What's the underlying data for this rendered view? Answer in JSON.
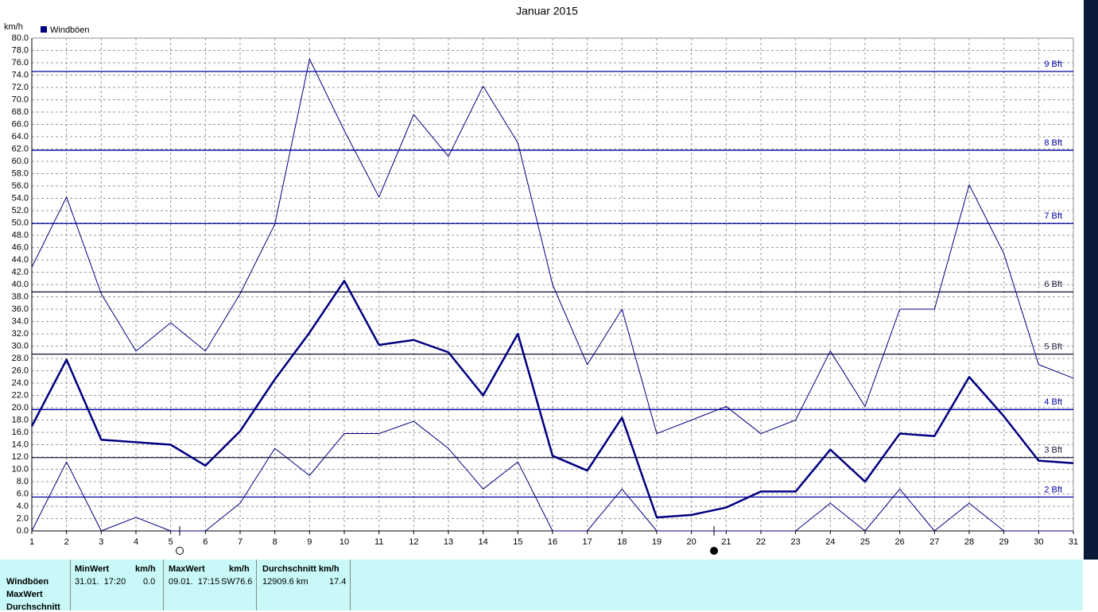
{
  "chart_data": {
    "type": "line",
    "title": "Januar 2015",
    "y_unit": "km/h",
    "legend": {
      "label": "Windböen",
      "color": "#000080"
    },
    "x": [
      1,
      2,
      3,
      4,
      5,
      6,
      7,
      8,
      9,
      10,
      11,
      12,
      13,
      14,
      15,
      16,
      17,
      18,
      19,
      20,
      21,
      22,
      23,
      24,
      25,
      26,
      27,
      28,
      29,
      30,
      31
    ],
    "xlim": [
      1,
      31
    ],
    "xticks": [
      1,
      2,
      3,
      4,
      5,
      6,
      7,
      8,
      9,
      10,
      11,
      12,
      13,
      14,
      15,
      16,
      17,
      18,
      19,
      20,
      21,
      22,
      23,
      24,
      25,
      26,
      27,
      28,
      29,
      30,
      31
    ],
    "ylim": [
      0,
      80
    ],
    "yticks": [
      {
        "value": 0,
        "label": "0.0"
      },
      {
        "value": 2,
        "label": "2.0"
      },
      {
        "value": 4,
        "label": "4.0"
      },
      {
        "value": 6,
        "label": "6.0"
      },
      {
        "value": 8,
        "label": "8.0"
      },
      {
        "value": 10,
        "label": "10.0"
      },
      {
        "value": 12,
        "label": "12.0"
      },
      {
        "value": 14,
        "label": "14.0"
      },
      {
        "value": 16,
        "label": "16.0"
      },
      {
        "value": 18,
        "label": "18.0"
      },
      {
        "value": 20,
        "label": "20.0"
      },
      {
        "value": 22,
        "label": "22.0"
      },
      {
        "value": 24,
        "label": "24.0"
      },
      {
        "value": 26,
        "label": "26.0"
      },
      {
        "value": 28,
        "label": "28.0"
      },
      {
        "value": 30,
        "label": "30.0"
      },
      {
        "value": 32,
        "label": "32.0"
      },
      {
        "value": 34,
        "label": "34.0"
      },
      {
        "value": 36,
        "label": "36.0"
      },
      {
        "value": 38,
        "label": "38.0"
      },
      {
        "value": 40,
        "label": "40.0"
      },
      {
        "value": 42,
        "label": "42.0"
      },
      {
        "value": 44,
        "label": "44.0"
      },
      {
        "value": 46,
        "label": "46.0"
      },
      {
        "value": 48,
        "label": "48.0"
      },
      {
        "value": 50,
        "label": "50.0"
      },
      {
        "value": 52,
        "label": "52.0"
      },
      {
        "value": 54,
        "label": "54.0"
      },
      {
        "value": 56,
        "label": "56.0"
      },
      {
        "value": 58,
        "label": "58.0"
      },
      {
        "value": 60,
        "label": "60.0"
      },
      {
        "value": 62,
        "label": "62.0"
      },
      {
        "value": 64,
        "label": "64.0"
      },
      {
        "value": 66,
        "label": "66.0"
      },
      {
        "value": 68,
        "label": "68.0"
      },
      {
        "value": 70,
        "label": "70.0"
      },
      {
        "value": 72,
        "label": "72.0"
      },
      {
        "value": 74,
        "label": "74.0"
      },
      {
        "value": 76,
        "label": "76.0"
      },
      {
        "value": 78,
        "label": "78.0"
      },
      {
        "value": 80,
        "label": "80.0"
      }
    ],
    "grid": true,
    "series": [
      {
        "color": "#000080",
        "width": 1,
        "values": [
          42.8,
          54.2,
          38.5,
          29.2,
          33.8,
          29.2,
          38.5,
          49.8,
          76.6,
          65.0,
          54.2,
          67.6,
          60.8,
          72.2,
          63.0,
          40.0,
          27.0,
          36.0,
          15.8,
          18.0,
          20.2,
          15.8,
          18.0,
          29.2,
          20.2,
          36.0,
          36.0,
          56.2,
          45.0,
          27.0,
          24.8
        ]
      },
      {
        "color": "#000080",
        "width": 2.5,
        "values": [
          17.0,
          27.8,
          14.8,
          14.4,
          14.0,
          10.6,
          16.2,
          24.6,
          32.2,
          40.6,
          30.2,
          31.0,
          29.0,
          22.0,
          32.0,
          12.2,
          9.8,
          18.4,
          2.2,
          2.6,
          3.8,
          6.4,
          6.4,
          13.2,
          8.0,
          15.8,
          15.4,
          25.0,
          18.6,
          11.4,
          11.0
        ]
      },
      {
        "color": "#000080",
        "width": 1,
        "values": [
          0,
          11.2,
          0,
          2.2,
          0,
          0,
          4.5,
          13.4,
          9.0,
          15.8,
          15.8,
          17.8,
          13.4,
          6.8,
          11.2,
          0,
          0,
          6.8,
          0,
          0,
          0,
          0,
          0,
          4.5,
          0,
          6.8,
          0,
          4.5,
          0,
          0,
          0
        ]
      }
    ],
    "reference_lines": [
      {
        "value": 5.5,
        "label": "2 Bft",
        "color": "#0000a0"
      },
      {
        "value": 11.9,
        "label": "3 Bft",
        "color": "#202040"
      },
      {
        "value": 19.7,
        "label": "4 Bft",
        "color": "#0000a0"
      },
      {
        "value": 28.7,
        "label": "5 Bft",
        "color": "#202040"
      },
      {
        "value": 38.8,
        "label": "6 Bft",
        "color": "#202040"
      },
      {
        "value": 49.9,
        "label": "7 Bft",
        "color": "#0000a0"
      },
      {
        "value": 61.8,
        "label": "8 Bft",
        "color": "#0000a0"
      },
      {
        "value": 74.6,
        "label": "9 Bft",
        "color": "#0000a0"
      }
    ],
    "moon_phases": [
      {
        "x": 5.26,
        "filled": false
      },
      {
        "x": 20.65,
        "filled": true
      }
    ]
  },
  "table": {
    "row_labels": [
      "Windböen",
      "MaxWert",
      "Durchschnitt"
    ],
    "groups": [
      {
        "title": "MinWert",
        "unit": "km/h",
        "cells": [
          "31.01.  17:20",
          "0.0"
        ]
      },
      {
        "title": "MaxWert",
        "unit": "km/h",
        "cells": [
          "09.01.  17:15",
          "SW",
          "76.6"
        ]
      },
      {
        "title": "Durchschnitt km/h",
        "cells": [
          "12909.6 km",
          "17.4"
        ]
      }
    ]
  }
}
